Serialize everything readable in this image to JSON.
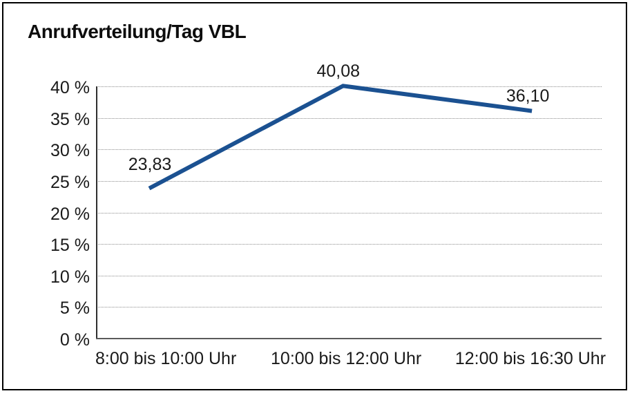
{
  "window": {
    "title": "Anrufverteilung/Tag VBL"
  },
  "colors": {
    "line": "#1B5191",
    "grid": "#8c8c8c",
    "axis_y": "#2e2e2e",
    "axis_x": "#5a5a5a",
    "text": "#1a1a1a",
    "frame": "#000000",
    "background": "#ffffff"
  },
  "chart_data": {
    "type": "line",
    "title": "Anrufverteilung/Tag VBL",
    "categories": [
      "8:00 bis 10:00 Uhr",
      "10:00 bis 12:00 Uhr",
      "12:00 bis 16:30 Uhr"
    ],
    "series": [
      {
        "name": "Anrufverteilung/Tag VBL",
        "values": [
          23.83,
          40.08,
          36.1
        ],
        "value_labels": [
          "23,83",
          "40,08",
          "36,10"
        ],
        "color": "#1B5191"
      }
    ],
    "xlabel": "",
    "ylabel": "",
    "ylim": [
      0,
      40
    ],
    "ytick_step": 5,
    "ytick_labels": [
      "0 %",
      "5 %",
      "10 %",
      "15 %",
      "20 %",
      "25 %",
      "30 %",
      "35 %",
      "40 %"
    ],
    "grid": "horizontal-dotted",
    "legend_position": "none",
    "line_style": "solid-thick",
    "markers": "none"
  }
}
